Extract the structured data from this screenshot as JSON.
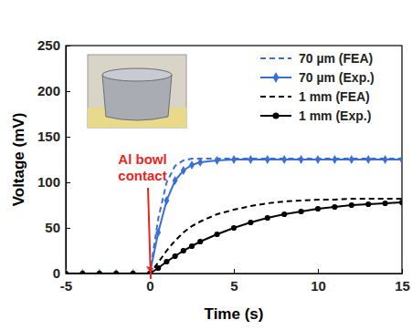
{
  "chart_data": {
    "type": "line",
    "x_label": "Time (s)",
    "y_label": "Voltage (mV)",
    "x": [
      -5,
      -4,
      -3,
      -2,
      -1,
      0,
      0.5,
      1,
      1.5,
      2,
      2.5,
      3,
      4,
      5,
      6,
      7,
      8,
      9,
      10,
      11,
      12,
      13,
      14,
      15
    ],
    "xlim": [
      -5,
      15
    ],
    "xticks": [
      -5,
      0,
      5,
      10,
      15
    ],
    "ylim": [
      0,
      250
    ],
    "yticks": [
      0,
      50,
      100,
      150,
      200,
      250
    ],
    "legend": "top-right",
    "series": [
      {
        "name": "70 µm (FEA)",
        "color": "#3a6fd8",
        "line_style": "dashed",
        "values": [
          0,
          0,
          0,
          0,
          0,
          0,
          60,
          100,
          118,
          124,
          126,
          126,
          126,
          126,
          126,
          126,
          126,
          126,
          126,
          126,
          126,
          126,
          126,
          126
        ]
      },
      {
        "name": "70 µm (Exp.)",
        "color": "#3a6fd8",
        "line_style": "solid",
        "marker": "diamond",
        "values": [
          0,
          0,
          0,
          0,
          0,
          0,
          45,
          80,
          102,
          113,
          119,
          122,
          124,
          125,
          125,
          125,
          125,
          125,
          125,
          125,
          125,
          125,
          125,
          125
        ]
      },
      {
        "name": "1 mm (FEA)",
        "color": "#000000",
        "line_style": "dashed",
        "values": [
          0,
          0,
          0,
          0,
          0,
          0,
          12,
          25,
          36,
          45,
          52,
          57,
          65,
          70,
          74,
          77,
          79,
          80,
          81,
          81,
          82,
          82,
          82,
          82
        ]
      },
      {
        "name": "1 mm (Exp.)",
        "color": "#000000",
        "line_style": "solid",
        "marker": "circle",
        "values": [
          0,
          0,
          0,
          0,
          0,
          0,
          6,
          13,
          19,
          25,
          30,
          35,
          43,
          50,
          56,
          61,
          65,
          68,
          71,
          73,
          75,
          76,
          77,
          78
        ]
      }
    ],
    "annotations": [
      {
        "text": [
          "Al bowl",
          "contact"
        ],
        "x": 0,
        "y": 0,
        "color": "#e8261e"
      }
    ]
  }
}
